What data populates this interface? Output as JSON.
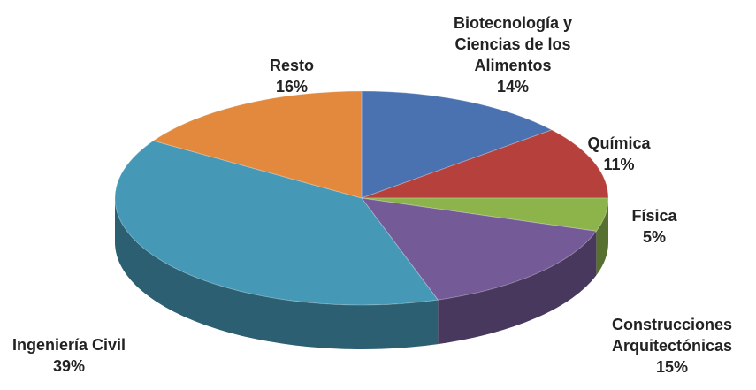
{
  "chart_data": {
    "type": "pie",
    "categories": [
      "Biotecnología y\nCiencias de los\nAlimentos",
      "Química",
      "Física",
      "Construcciones\nArquitectónicas",
      "Ingeniería Civil",
      "Resto"
    ],
    "values": [
      14,
      11,
      5,
      15,
      39,
      16
    ],
    "value_labels": [
      "14%",
      "11%",
      "5%",
      "15%",
      "39%",
      "16%"
    ],
    "colors": [
      "#4a72b0",
      "#b5403c",
      "#8db34b",
      "#745a97",
      "#4699b6",
      "#e2893d"
    ]
  }
}
